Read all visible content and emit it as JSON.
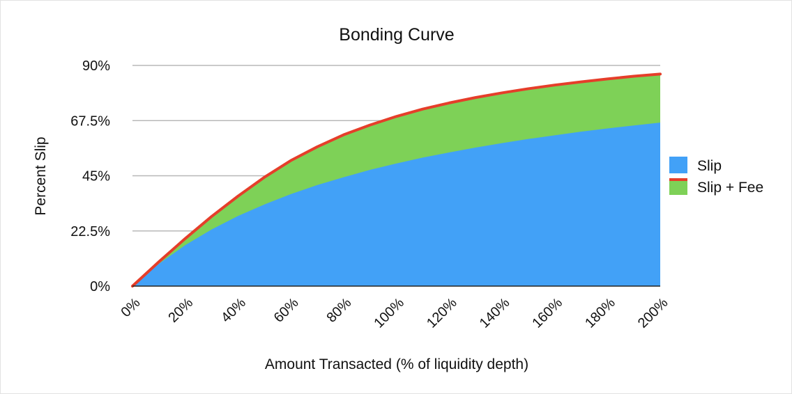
{
  "chart_data": {
    "type": "area",
    "title": "Bonding Curve",
    "xlabel": "Amount Transacted (% of liquidity depth)",
    "ylabel": "Percent Slip",
    "x_ticks": [
      "0%",
      "20%",
      "40%",
      "60%",
      "80%",
      "100%",
      "120%",
      "140%",
      "160%",
      "180%",
      "200%"
    ],
    "y_ticks": [
      "0%",
      "22.5%",
      "45%",
      "67.5%",
      "90%"
    ],
    "xlim": [
      0,
      200
    ],
    "ylim": [
      0,
      90
    ],
    "grid": true,
    "legend_position": "right",
    "x": [
      0,
      10,
      20,
      30,
      40,
      50,
      60,
      70,
      80,
      90,
      100,
      110,
      120,
      130,
      140,
      150,
      160,
      170,
      180,
      190,
      200
    ],
    "series": [
      {
        "name": "Slip",
        "color": "#42a1f7",
        "values": [
          0,
          9.1,
          16.7,
          23.1,
          28.6,
          33.3,
          37.5,
          41.2,
          44.4,
          47.4,
          50.0,
          52.4,
          54.5,
          56.5,
          58.3,
          60.0,
          61.5,
          63.0,
          64.3,
          65.5,
          66.7
        ]
      },
      {
        "name": "Slip + Fee",
        "color": "#7ed157",
        "line_color": "#e53e2a",
        "values": [
          0,
          9.9,
          19.4,
          28.4,
          36.7,
          44.4,
          51.2,
          56.8,
          61.7,
          65.7,
          69.2,
          72.2,
          74.7,
          76.9,
          78.8,
          80.5,
          82.0,
          83.3,
          84.5,
          85.6,
          86.5
        ]
      }
    ]
  }
}
